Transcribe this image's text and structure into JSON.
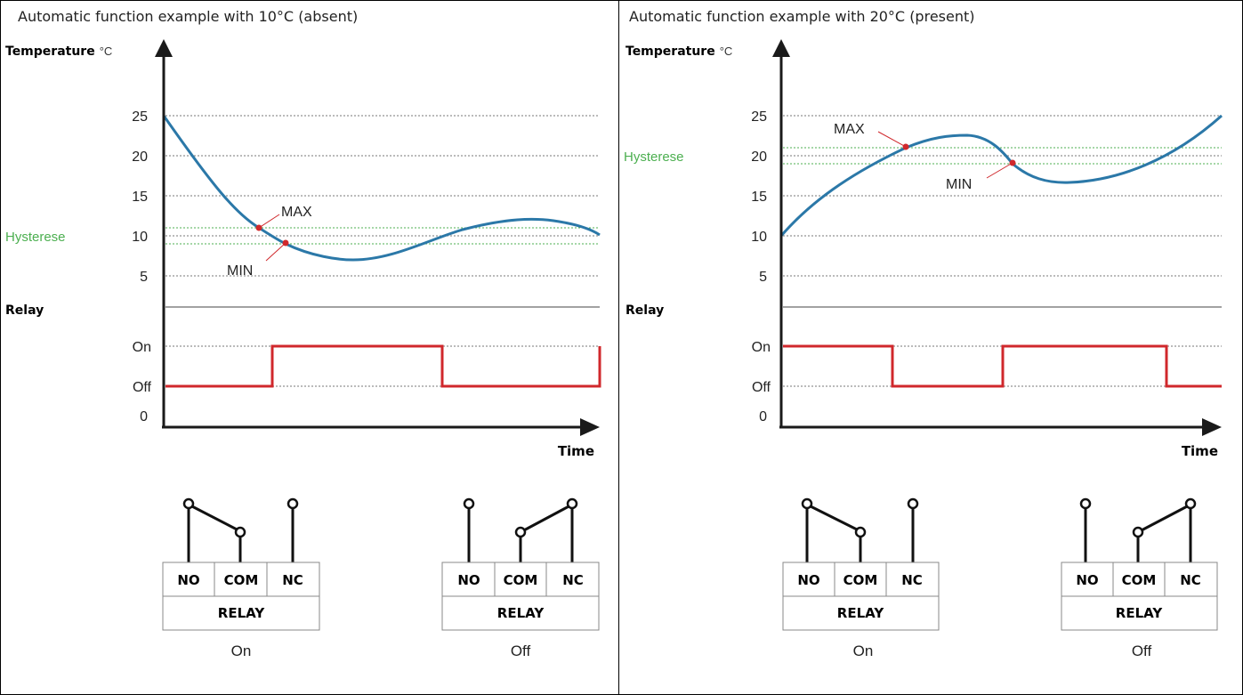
{
  "panels": [
    {
      "title": "Automatic function example with 10°C (absent)",
      "temperature_label": "Temperature",
      "temperature_unit": "°C",
      "relay_label": "Relay",
      "time_label": "Time",
      "hysteresis_label": "Hysterese",
      "max_label": "MAX",
      "min_label": "MIN",
      "temp_ticks": [
        "25",
        "20",
        "15",
        "10",
        "5"
      ],
      "relay_ticks": [
        "On",
        "Off",
        "0"
      ],
      "relay_states": [
        "Off",
        "On",
        "Off",
        "On"
      ],
      "relay_blocks": [
        {
          "terminals": [
            "NO",
            "COM",
            "NC"
          ],
          "name": "RELAY",
          "caption": "On"
        },
        {
          "terminals": [
            "NO",
            "COM",
            "NC"
          ],
          "name": "RELAY",
          "caption": "Off"
        }
      ]
    },
    {
      "title": "Automatic function example with 20°C (present)",
      "temperature_label": "Temperature",
      "temperature_unit": "°C",
      "relay_label": "Relay",
      "time_label": "Time",
      "hysteresis_label": "Hysterese",
      "max_label": "MAX",
      "min_label": "MIN",
      "temp_ticks": [
        "25",
        "20",
        "15",
        "10",
        "5"
      ],
      "relay_ticks": [
        "On",
        "Off",
        "0"
      ],
      "relay_states": [
        "On",
        "Off",
        "On",
        "Off"
      ],
      "relay_blocks": [
        {
          "terminals": [
            "NO",
            "COM",
            "NC"
          ],
          "name": "RELAY",
          "caption": "On"
        },
        {
          "terminals": [
            "NO",
            "COM",
            "NC"
          ],
          "name": "RELAY",
          "caption": "Off"
        }
      ]
    }
  ],
  "colors": {
    "curve": "#2b78a8",
    "relay_signal": "#d0282c",
    "hysteresis": "#4caf50",
    "marker": "#d0282c",
    "axis": "#1a1a1a",
    "grid": "#777777"
  }
}
